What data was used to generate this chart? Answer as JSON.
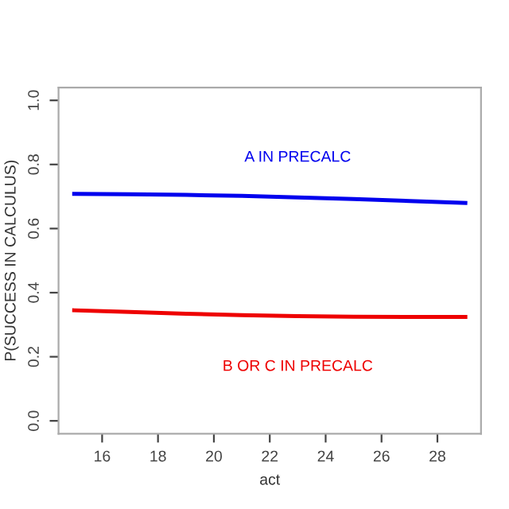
{
  "chart_data": {
    "type": "line",
    "xlabel": "act",
    "ylabel": "P(SUCCESS IN CALCULUS)",
    "xlim": [
      14.44,
      29.56
    ],
    "ylim": [
      -0.04,
      1.04
    ],
    "xticks": [
      16,
      18,
      20,
      22,
      24,
      26,
      28
    ],
    "yticks": [
      {
        "value": 0,
        "label": "0.0"
      },
      {
        "value": 0.2,
        "label": "0.2"
      },
      {
        "value": 0.4,
        "label": "0.4"
      },
      {
        "value": 0.6,
        "label": "0.6"
      },
      {
        "value": 0.8,
        "label": "0.8"
      },
      {
        "value": 1,
        "label": "1.0"
      }
    ],
    "grid": false,
    "legend": false,
    "line_style": "solid",
    "marker": "none",
    "series": [
      {
        "name": "A IN PRECALC",
        "color": "#0000ee",
        "x": [
          15,
          17,
          19,
          21,
          23,
          25,
          27,
          29
        ],
        "values": [
          0.708,
          0.707,
          0.705,
          0.702,
          0.697,
          0.692,
          0.686,
          0.68
        ]
      },
      {
        "name": "B OR C IN PRECALC",
        "color": "#ee0000",
        "x": [
          15,
          17,
          19,
          21,
          23,
          25,
          27,
          29
        ],
        "values": [
          0.345,
          0.34,
          0.334,
          0.33,
          0.327,
          0.325,
          0.324,
          0.324
        ]
      }
    ]
  }
}
